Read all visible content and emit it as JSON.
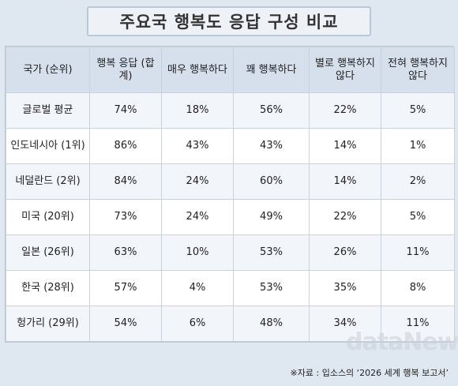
{
  "title": "주요국 행복도 응답 구성 비교",
  "headers": [
    "국가 (순위)",
    "행복 응답 (합계)",
    "매우 행복하다",
    "꽤 행복하다",
    "별로 행복하지 않다",
    "전혀 행복하지 않다"
  ],
  "rows": [
    [
      "글로벌 평균",
      "74%",
      "18%",
      "56%",
      "22%",
      "5%"
    ],
    [
      "인도네시아 (1위)",
      "86%",
      "43%",
      "43%",
      "14%",
      "1%"
    ],
    [
      "네덜란드 (2위)",
      "84%",
      "24%",
      "60%",
      "14%",
      "2%"
    ],
    [
      "미국 (20위)",
      "73%",
      "24%",
      "49%",
      "22%",
      "5%"
    ],
    [
      "일본 (26위)",
      "63%",
      "10%",
      "53%",
      "26%",
      "11%"
    ],
    [
      "한국 (28위)",
      "57%",
      "4%",
      "53%",
      "35%",
      "8%"
    ],
    [
      "헝가리 (29위)",
      "54%",
      "6%",
      "48%",
      "34%",
      "11%"
    ]
  ],
  "source": "※자료 : 입소스의 ‘2026 세계 행복 보고서’",
  "watermark": "dataNews"
}
